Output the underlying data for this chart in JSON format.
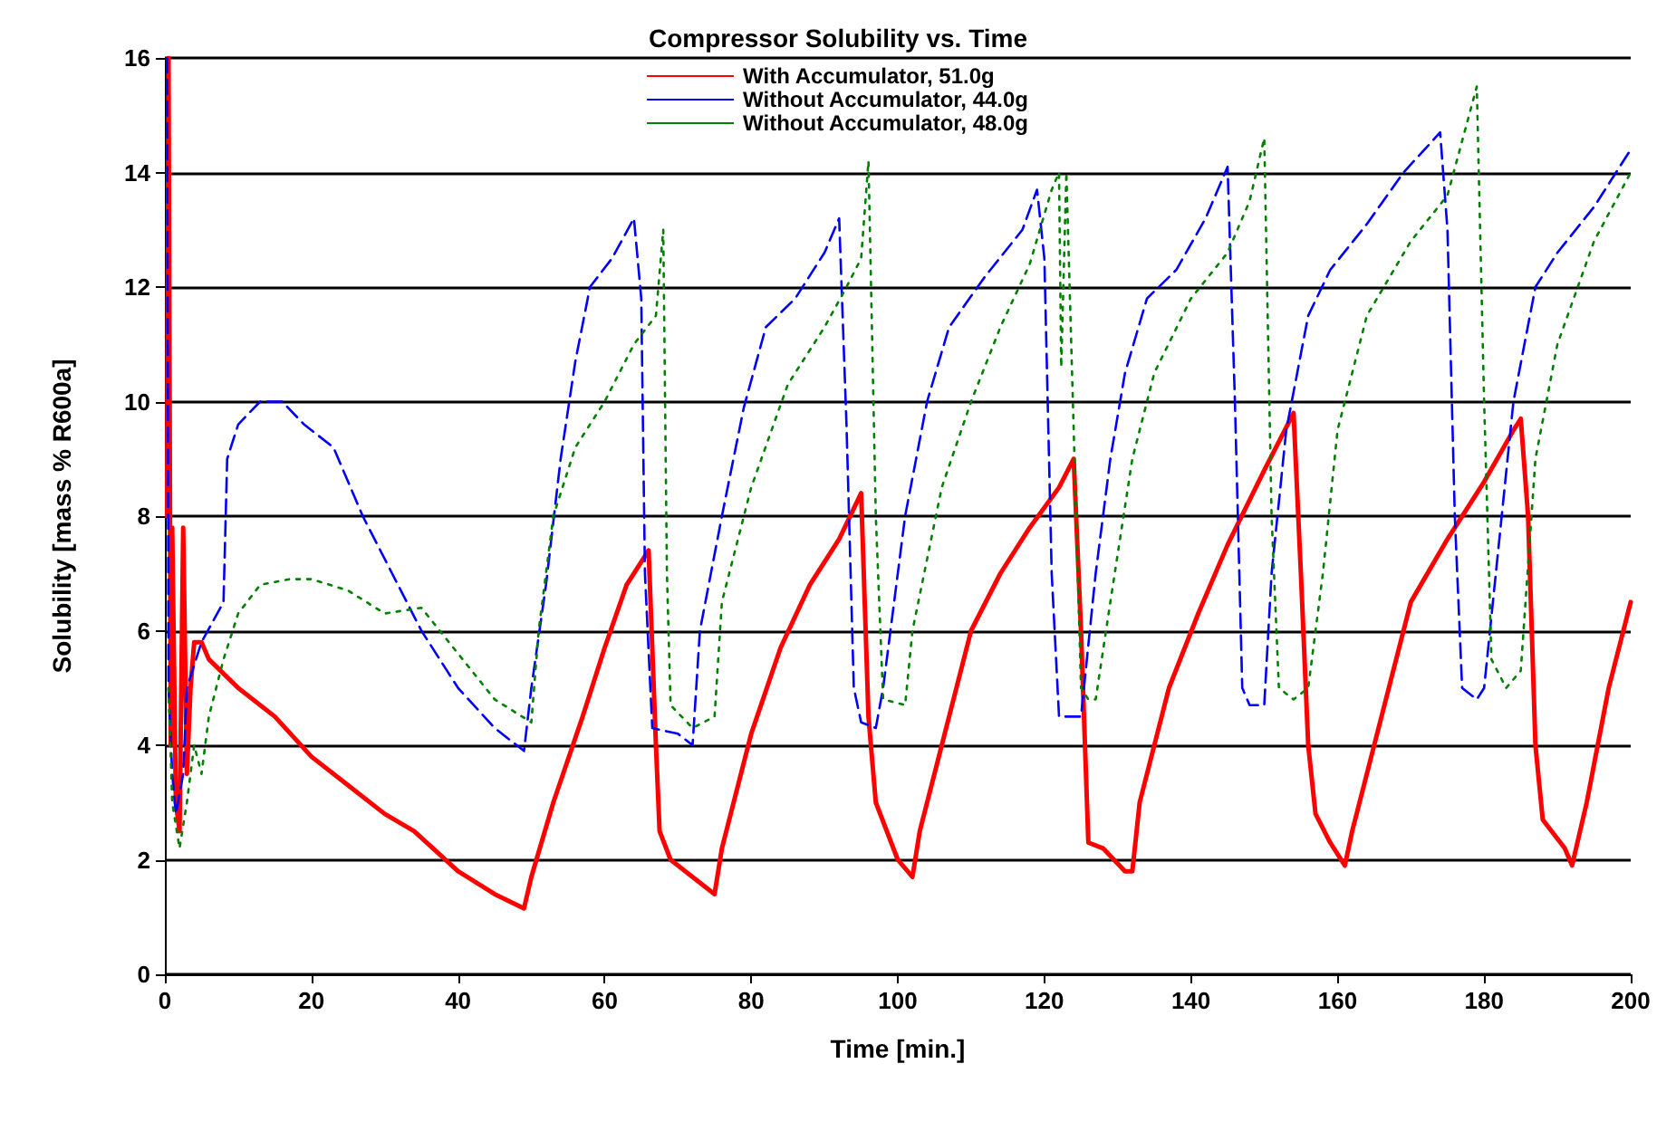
{
  "chart_data": {
    "type": "line",
    "title": "Compressor Solubility vs. Time",
    "xlabel": "Time [min.]",
    "ylabel": "Solubility [mass % R600a]",
    "xlim": [
      0,
      200
    ],
    "xticks": [
      0,
      20,
      40,
      60,
      80,
      100,
      120,
      140,
      160,
      180,
      200
    ],
    "ylim": [
      0,
      16
    ],
    "yticks": [
      0,
      2,
      4,
      6,
      8,
      10,
      12,
      14,
      16
    ],
    "grid": "y",
    "legend": "top",
    "marker": "none",
    "series": [
      {
        "name": "With Accumulator, 51.0g",
        "color": "#ff0000",
        "line_style": "solid",
        "x": [
          0.3,
          0.5,
          0.8,
          1,
          1.5,
          2,
          2.5,
          3,
          3.5,
          4,
          5,
          6,
          10,
          15,
          20,
          25,
          30,
          34,
          40,
          45,
          49,
          50,
          53,
          57,
          60,
          63,
          66,
          67,
          67.5,
          69,
          72,
          75,
          76,
          80,
          84,
          88,
          92,
          95,
          96,
          97,
          100,
          102,
          103,
          107,
          110,
          114,
          118,
          122,
          124,
          125,
          126,
          128,
          131,
          132,
          133,
          137,
          141,
          145,
          150,
          154,
          155,
          156,
          157,
          159,
          161,
          162,
          166,
          170,
          175,
          180,
          184,
          185,
          186,
          187,
          188,
          191,
          192,
          194,
          197,
          200
        ],
        "values": [
          8,
          16,
          4,
          7.8,
          3,
          2.5,
          7.8,
          3.5,
          5,
          5.8,
          5.8,
          5.5,
          5,
          4.5,
          3.8,
          3.3,
          2.8,
          2.5,
          1.8,
          1.4,
          1.15,
          1.7,
          3,
          4.5,
          5.7,
          6.8,
          7.4,
          4,
          2.5,
          2,
          1.7,
          1.4,
          2.2,
          4.2,
          5.7,
          6.8,
          7.6,
          8.4,
          4.5,
          3,
          2,
          1.7,
          2.5,
          4.5,
          6,
          7,
          7.8,
          8.5,
          9,
          6,
          2.3,
          2.2,
          1.8,
          1.8,
          3,
          5,
          6.3,
          7.5,
          8.8,
          9.8,
          7,
          4,
          2.8,
          2.3,
          1.9,
          2.5,
          4.5,
          6.5,
          7.6,
          8.6,
          9.5,
          9.7,
          8,
          4,
          2.7,
          2.2,
          1.9,
          3,
          5,
          6.5
        ]
      },
      {
        "name": "Without Accumulator, 44.0g",
        "color": "#0000ff",
        "line_style": "dashed",
        "x": [
          0.3,
          0.5,
          1,
          1.5,
          2.5,
          3,
          5,
          8,
          8.5,
          10,
          13,
          16,
          19,
          23,
          27,
          31,
          35,
          40,
          45,
          49,
          50,
          52,
          54,
          56,
          58,
          61,
          64,
          65,
          65.5,
          66.5,
          70,
          72,
          73,
          76,
          79,
          82,
          86,
          90,
          92,
          93,
          94,
          95,
          97,
          98,
          101,
          104,
          107,
          112,
          117,
          119,
          120,
          121,
          122,
          125,
          127,
          129,
          131,
          134,
          138,
          142,
          145,
          146,
          147,
          148,
          150,
          151,
          153,
          156,
          159,
          164,
          169,
          174,
          175,
          176,
          177,
          179,
          180,
          182,
          184,
          187,
          190,
          195,
          200
        ],
        "values": [
          16,
          5,
          3.5,
          2.8,
          3.5,
          5,
          5.8,
          6.5,
          9,
          9.6,
          10,
          10,
          9.6,
          9.2,
          8,
          7,
          6,
          5,
          4.3,
          3.9,
          5,
          6.8,
          9,
          10.7,
          12,
          12.5,
          13.2,
          11.8,
          7,
          4.3,
          4.2,
          4,
          6,
          8,
          9.9,
          11.3,
          11.8,
          12.6,
          13.2,
          9.6,
          5,
          4.4,
          4.3,
          5,
          8,
          10,
          11.3,
          12.2,
          13,
          13.7,
          12.5,
          7,
          4.5,
          4.5,
          7,
          9,
          10.5,
          11.8,
          12.3,
          13.2,
          14.1,
          10,
          5,
          4.7,
          4.7,
          7,
          9.5,
          11.5,
          12.3,
          13.1,
          14,
          14.7,
          13,
          8,
          5,
          4.8,
          5,
          7.5,
          10,
          12,
          12.6,
          13.4,
          14.4
        ]
      },
      {
        "name": "Without Accumulator, 48.0g",
        "color": "#008000",
        "line_style": "dotted",
        "x": [
          0.5,
          1,
          2,
          3,
          4,
          5,
          6,
          7,
          8,
          10,
          13,
          17,
          20,
          25,
          30,
          35,
          40,
          45,
          50,
          51,
          53,
          56,
          60,
          64,
          67,
          68,
          68.5,
          69,
          72,
          75,
          76,
          80,
          85,
          90,
          93,
          95,
          96,
          97,
          98,
          101,
          102,
          106,
          110,
          114,
          118,
          121,
          122,
          122.3,
          123,
          125,
          126,
          127,
          129,
          132,
          135,
          140,
          145,
          148,
          150,
          151,
          152,
          154,
          156,
          158,
          160,
          164,
          170,
          175,
          179,
          180,
          181,
          183,
          185,
          187,
          190,
          195,
          200
        ],
        "values": [
          5,
          3,
          2.2,
          3,
          4,
          3.5,
          4.5,
          5,
          5.5,
          6.3,
          6.8,
          6.9,
          6.9,
          6.7,
          6.3,
          6.4,
          5.6,
          4.8,
          4.4,
          6,
          8,
          9.2,
          10,
          11,
          11.5,
          13,
          7,
          4.7,
          4.3,
          4.5,
          6.5,
          8.5,
          10.3,
          11.3,
          12,
          12.5,
          14.2,
          8,
          4.8,
          4.7,
          6,
          8.5,
          10,
          11.3,
          12.4,
          13.7,
          14,
          10.6,
          14,
          5,
          4.8,
          4.8,
          6.5,
          9,
          10.5,
          11.8,
          12.6,
          13.5,
          14.6,
          8,
          5,
          4.8,
          5,
          7,
          9.5,
          11.5,
          12.8,
          13.6,
          15.5,
          10,
          5.5,
          5,
          5.3,
          9,
          11,
          12.8,
          14
        ]
      }
    ]
  }
}
